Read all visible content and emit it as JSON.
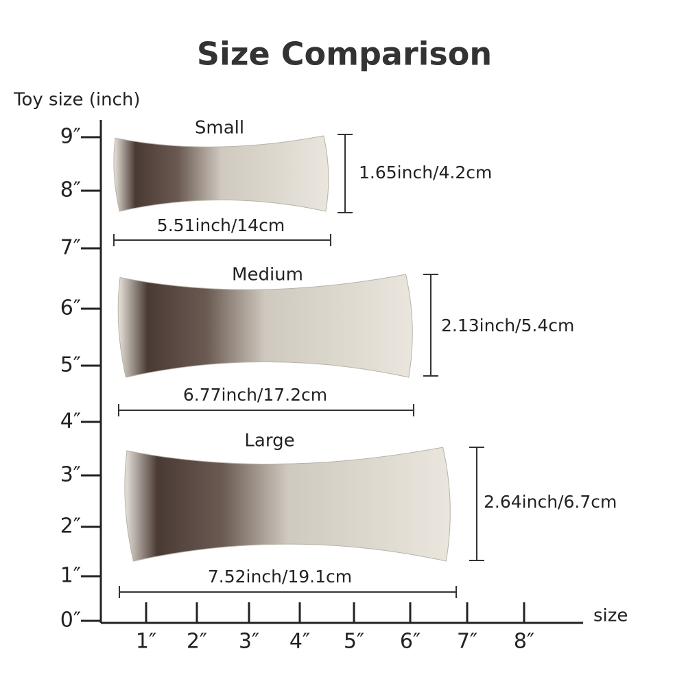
{
  "title": "Size Comparison",
  "y_axis_label": "Toy size (inch)",
  "x_axis_label": "size",
  "y_ticks": [
    "0″",
    "1″",
    "2″",
    "3″",
    "4″",
    "5″",
    "6″",
    "7″",
    "8″",
    "9″"
  ],
  "x_ticks": [
    "1″",
    "2″",
    "3″",
    "4″",
    "5″",
    "6″",
    "7″",
    "8″"
  ],
  "items": [
    {
      "name": "Small",
      "length": "5.51inch/14cm",
      "height": "1.65inch/4.2cm"
    },
    {
      "name": "Medium",
      "length": "6.77inch/17.2cm",
      "height": "2.13inch/5.4cm"
    },
    {
      "name": "Large",
      "length": "7.52inch/19.1cm",
      "height": "2.64inch/6.7cm"
    }
  ]
}
